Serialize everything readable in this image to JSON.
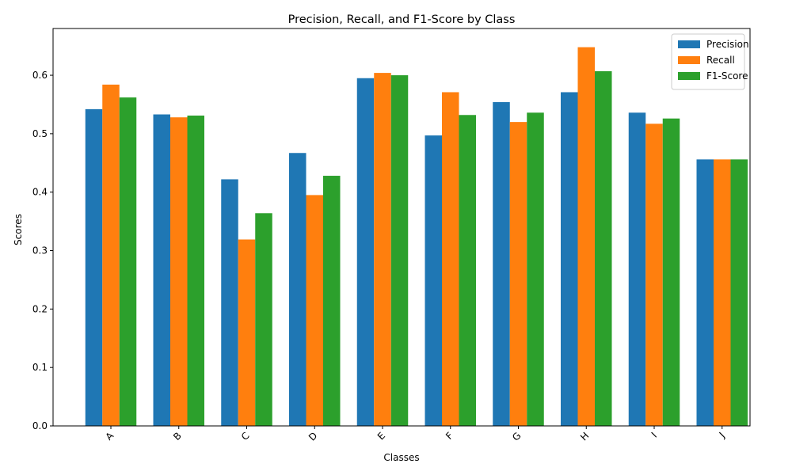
{
  "chart_data": {
    "type": "bar",
    "title": "Precision, Recall, and F1-Score by Class",
    "xlabel": "Classes",
    "ylabel": "Scores",
    "categories": [
      "A",
      "B",
      "C",
      "D",
      "E",
      "F",
      "G",
      "H",
      "I",
      "J"
    ],
    "series": [
      {
        "name": "Precision",
        "color": "#1f77b4",
        "values": [
          0.542,
          0.533,
          0.422,
          0.467,
          0.595,
          0.497,
          0.554,
          0.571,
          0.536,
          0.456
        ]
      },
      {
        "name": "Recall",
        "color": "#ff7f0e",
        "values": [
          0.584,
          0.528,
          0.319,
          0.395,
          0.604,
          0.571,
          0.52,
          0.648,
          0.517,
          0.456
        ]
      },
      {
        "name": "F1-Score",
        "color": "#2ca02c",
        "values": [
          0.562,
          0.531,
          0.364,
          0.428,
          0.6,
          0.532,
          0.536,
          0.607,
          0.526,
          0.456
        ]
      }
    ],
    "yticks": [
      "0.0",
      "0.1",
      "0.2",
      "0.3",
      "0.4",
      "0.5",
      "0.6"
    ],
    "ylim": [
      0,
      0.68
    ],
    "grid": false,
    "legend_position": "top-right"
  }
}
